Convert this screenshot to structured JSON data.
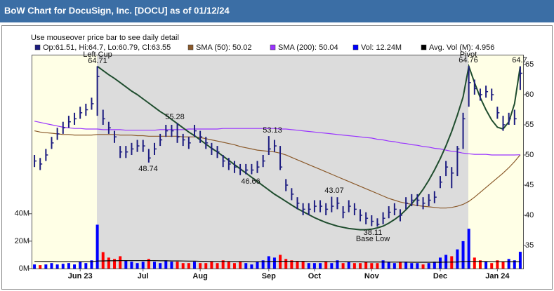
{
  "chart_data": {
    "type": "ohlc",
    "title": "BoW Chart for DocuSign, Inc. [DOCU] as of 01/12/24",
    "subtitle": "Use mouseover price bar to see daily detail",
    "categories": [
      null,
      null,
      null,
      null,
      null,
      null,
      null,
      null,
      "Jun 23",
      null,
      null,
      null,
      null,
      null,
      null,
      null,
      null,
      null,
      null,
      "Jul",
      null,
      null,
      null,
      null,
      null,
      null,
      null,
      null,
      null,
      "Aug",
      null,
      null,
      null,
      null,
      null,
      null,
      null,
      null,
      null,
      null,
      null,
      "Sep",
      null,
      null,
      null,
      null,
      null,
      null,
      null,
      "Oct",
      null,
      null,
      null,
      null,
      null,
      null,
      null,
      null,
      null,
      "Nov",
      null,
      null,
      null,
      null,
      null,
      null,
      null,
      null,
      null,
      null,
      null,
      "Dec",
      null,
      null,
      null,
      null,
      null,
      null,
      null,
      null,
      null,
      "Jan 24",
      null,
      null,
      null,
      null
    ],
    "ylim": [
      31.16,
      66.63
    ],
    "yticks": [
      35,
      40,
      45,
      50,
      55,
      60,
      65
    ],
    "y2lim": [
      0,
      156
    ],
    "y2ticks": [
      {
        "value": 0,
        "label": "0M"
      },
      {
        "value": 20,
        "label": "20M"
      },
      {
        "value": 40,
        "label": "40M"
      }
    ],
    "annotations": [
      "Left Cup",
      "64.71",
      "55.28",
      "48.74",
      "53.13",
      "46.66",
      "43.07",
      "38.11",
      "Base Low",
      "Pivot",
      "64.76",
      "64.7"
    ],
    "series": [
      {
        "name": "Op:61.51, Hi:64.7, Lo:60.79, Cl:63.55",
        "color": "#1c1c80",
        "high": [
          50,
          49.5,
          51,
          53,
          54.5,
          55.5,
          56.5,
          57,
          58,
          58.5,
          59.5,
          64.71,
          57.5,
          55.5,
          54,
          51.5,
          51.5,
          52,
          52.5,
          52.5,
          51,
          52,
          53.5,
          55,
          55,
          55.28,
          53.5,
          53,
          55,
          54,
          53,
          52,
          51.5,
          50,
          49.5,
          49,
          48.5,
          48.5,
          48.5,
          49,
          50,
          53.13,
          52.5,
          51.5,
          46,
          44.5,
          43,
          42,
          42,
          42.5,
          42.5,
          42,
          43.07,
          43,
          41.5,
          42.5,
          42,
          41,
          40.5,
          40,
          39.5,
          40.5,
          41.5,
          42,
          41,
          43,
          43.5,
          43.5,
          43,
          43.5,
          44,
          46.5,
          49,
          48,
          51.5,
          57,
          64.76,
          62.5,
          61,
          61.5,
          61,
          58,
          56.5,
          57,
          57.5,
          64.7
        ],
        "low": [
          48,
          47.5,
          49,
          51,
          52.5,
          53.5,
          54.5,
          55,
          56,
          56.5,
          57.5,
          56.5,
          55,
          53.5,
          52,
          49.5,
          49.5,
          50,
          50.5,
          50.5,
          48.74,
          50,
          51.5,
          53,
          53,
          52,
          51.5,
          51,
          53,
          52,
          51,
          50,
          49.5,
          48,
          47.5,
          47,
          46.66,
          46.8,
          46.8,
          47,
          48,
          50,
          50.5,
          47.5,
          44,
          42.5,
          41,
          40,
          40,
          40.5,
          40.5,
          40,
          40.5,
          41,
          39.5,
          40.5,
          40,
          39,
          38.5,
          38.2,
          38.11,
          38.5,
          39.5,
          40,
          39,
          41,
          41.5,
          41.5,
          41,
          41.5,
          42,
          44.5,
          46.5,
          44.5,
          46.5,
          51,
          58,
          60,
          59,
          59.5,
          59,
          56,
          54,
          55,
          55,
          60.79
        ],
        "values": [
          49,
          48.5,
          50,
          52,
          53.5,
          54.5,
          55.5,
          56,
          57,
          57.5,
          58.5,
          63,
          56,
          54.5,
          53,
          50.5,
          50.5,
          51,
          51.5,
          51.5,
          49.5,
          51,
          52.5,
          54,
          54,
          53,
          52.5,
          52,
          54,
          53,
          52,
          51,
          50.5,
          49,
          48.5,
          48,
          47.5,
          47.5,
          47.5,
          48,
          49,
          51,
          51.5,
          48,
          45,
          43.5,
          42,
          41,
          41,
          41.5,
          41.5,
          41,
          41.5,
          42,
          40.5,
          41.5,
          41,
          40,
          39.5,
          39,
          38.5,
          39.5,
          40.5,
          41,
          40,
          42,
          42.5,
          42.5,
          42,
          42.5,
          43,
          45.5,
          48,
          47,
          51,
          56,
          62,
          61,
          60,
          60.5,
          60,
          57,
          55,
          56,
          56,
          63.55
        ]
      },
      {
        "name": "SMA (50): 50.02",
        "color": "#8b5a2b",
        "values": [
          54.0,
          53.8,
          53.7,
          53.6,
          53.5,
          53.4,
          53.4,
          53.3,
          53.3,
          53.3,
          53.3,
          53.4,
          53.4,
          53.4,
          53.4,
          53.3,
          53.3,
          53.3,
          53.2,
          53.2,
          53.1,
          53.1,
          53.1,
          53.1,
          53.1,
          53.1,
          53.0,
          53.0,
          53.0,
          52.9,
          52.7,
          52.5,
          52.3,
          52.1,
          51.9,
          51.7,
          51.4,
          51.2,
          51.0,
          50.8,
          50.7,
          50.6,
          50.5,
          50.3,
          50.0,
          49.6,
          49.2,
          48.8,
          48.4,
          48.0,
          47.6,
          47.2,
          46.8,
          46.4,
          46.0,
          45.6,
          45.2,
          44.8,
          44.4,
          44.0,
          43.6,
          43.2,
          42.8,
          42.5,
          42.2,
          42.0,
          41.8,
          41.6,
          41.5,
          41.4,
          41.3,
          41.2,
          41.2,
          41.3,
          41.5,
          41.8,
          42.3,
          43.0,
          43.8,
          44.6,
          45.4,
          46.2,
          47.0,
          47.9,
          48.9,
          50.02
        ]
      },
      {
        "name": "SMA (200): 50.04",
        "color": "#9933ff",
        "values": [
          55.6,
          55.4,
          55.2,
          55.0,
          54.8,
          54.6,
          54.5,
          54.4,
          54.4,
          54.3,
          54.3,
          54.3,
          54.2,
          54.2,
          54.2,
          54.2,
          54.1,
          54.1,
          54.1,
          54.1,
          54.1,
          54.1,
          54.2,
          54.2,
          54.2,
          54.2,
          54.2,
          54.3,
          54.3,
          54.3,
          54.3,
          54.3,
          54.3,
          54.4,
          54.4,
          54.4,
          54.4,
          54.4,
          54.4,
          54.4,
          54.4,
          54.4,
          54.4,
          54.3,
          54.3,
          54.2,
          54.1,
          54.0,
          53.9,
          53.8,
          53.7,
          53.6,
          53.5,
          53.4,
          53.3,
          53.2,
          53.1,
          53.0,
          52.9,
          52.8,
          52.6,
          52.5,
          52.3,
          52.2,
          52.0,
          51.9,
          51.7,
          51.6,
          51.4,
          51.3,
          51.1,
          51.0,
          50.8,
          50.6,
          50.5,
          50.3,
          50.2,
          50.1,
          50.1,
          50.1,
          50.0,
          50.0,
          50.0,
          50.0,
          50.0,
          50.04
        ]
      },
      {
        "name": "Vol: 12.24M",
        "color": "#0000ff",
        "down_color": "#ff0000",
        "axis": "y2",
        "values": [
          3,
          2.5,
          3,
          4,
          3,
          3.5,
          4,
          3,
          5,
          4,
          6,
          32,
          12,
          8,
          7,
          9,
          6,
          5,
          4,
          5,
          7,
          5,
          4,
          6,
          5,
          5,
          4,
          4,
          5,
          4,
          4,
          5,
          4,
          6,
          5,
          4,
          5,
          4,
          3,
          5,
          6,
          9,
          8,
          10,
          7,
          6,
          5,
          5,
          4,
          4,
          4,
          5,
          4,
          6,
          4,
          5,
          4,
          4,
          5,
          4,
          4,
          6,
          5,
          4,
          5,
          5,
          4,
          4,
          3,
          4,
          5,
          8,
          10,
          9,
          14,
          20,
          29,
          8,
          6,
          5,
          4,
          6,
          5,
          7,
          6,
          12.24
        ]
      },
      {
        "name": "Avg. Vol (M): 4.956",
        "color": "#000000",
        "axis": "y2",
        "values": [
          5.2,
          5.2,
          5.1,
          5.1,
          5.0,
          5.0,
          5.0,
          5.0,
          5.0,
          5.0,
          5.0,
          5.5,
          5.6,
          5.7,
          5.7,
          5.8,
          5.8,
          5.8,
          5.8,
          5.8,
          5.8,
          5.8,
          5.7,
          5.7,
          5.6,
          5.6,
          5.5,
          5.4,
          5.4,
          5.3,
          5.3,
          5.2,
          5.2,
          5.2,
          5.2,
          5.1,
          5.1,
          5.1,
          5.0,
          5.0,
          5.0,
          5.1,
          5.2,
          5.3,
          5.3,
          5.3,
          5.3,
          5.3,
          5.2,
          5.2,
          5.1,
          5.1,
          5.0,
          5.0,
          5.0,
          4.9,
          4.9,
          4.9,
          4.8,
          4.8,
          4.8,
          4.8,
          4.7,
          4.7,
          4.7,
          4.7,
          4.6,
          4.6,
          4.6,
          4.6,
          4.6,
          4.6,
          4.7,
          4.7,
          4.8,
          5.0,
          5.2,
          5.2,
          5.1,
          5.1,
          5.0,
          5.0,
          5.0,
          4.9,
          4.9,
          4.956
        ]
      },
      {
        "color": "#1f4d2e",
        "values": [
          null,
          null,
          null,
          null,
          null,
          null,
          null,
          null,
          null,
          null,
          null,
          64.7,
          64.0,
          63.3,
          62.7,
          62.0,
          61.3,
          60.6,
          60.0,
          59.3,
          58.6,
          57.9,
          57.2,
          56.6,
          55.9,
          55.2,
          54.5,
          53.8,
          53.2,
          52.5,
          51.8,
          51.1,
          50.5,
          49.8,
          49.1,
          48.4,
          47.7,
          47.0,
          46.3,
          45.6,
          44.9,
          44.2,
          43.5,
          42.9,
          42.3,
          41.7,
          41.1,
          40.6,
          40.1,
          39.6,
          39.2,
          38.8,
          38.5,
          38.2,
          38.0,
          37.8,
          37.7,
          37.6,
          37.6,
          37.7,
          37.9,
          38.2,
          38.7,
          39.3,
          40.0,
          40.9,
          41.9,
          43.0,
          44.3,
          45.8,
          47.5,
          49.4,
          51.5,
          53.9,
          56.6,
          59.6,
          64.7,
          62.0,
          59.5,
          57.5,
          55.8,
          54.6,
          54.3,
          55.5,
          58.5,
          64.7
        ]
      }
    ]
  }
}
